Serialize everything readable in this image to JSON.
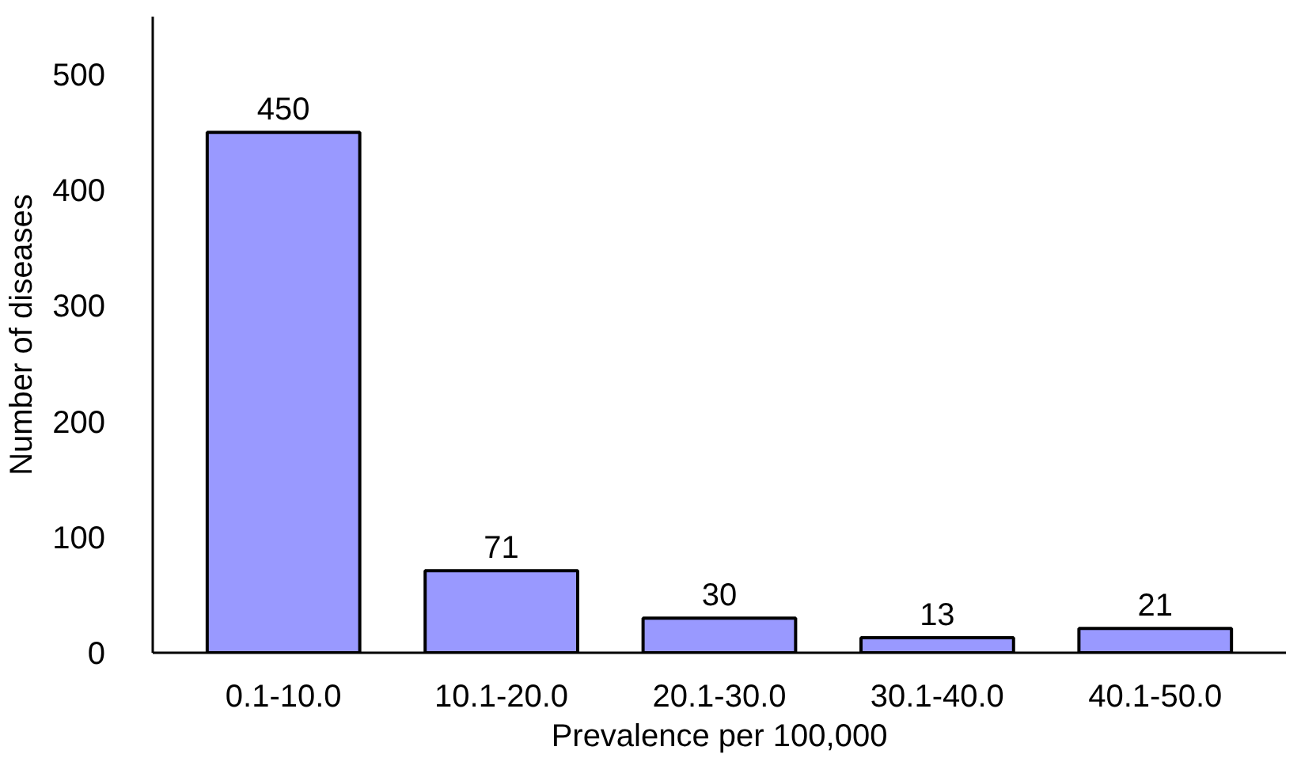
{
  "chart_data": {
    "type": "bar",
    "xlabel": "Prevalence per 100,000",
    "ylabel": "Number of diseases",
    "categories": [
      "0.1-10.0",
      "10.1-20.0",
      "20.1-30.0",
      "30.1-40.0",
      "40.1-50.0"
    ],
    "values": [
      450,
      71,
      30,
      13,
      21
    ],
    "color": "#9999ff",
    "data_labels": true,
    "ylim": [
      0,
      550
    ],
    "yticks": [
      0,
      100,
      200,
      300,
      400,
      500
    ],
    "grid": false
  }
}
